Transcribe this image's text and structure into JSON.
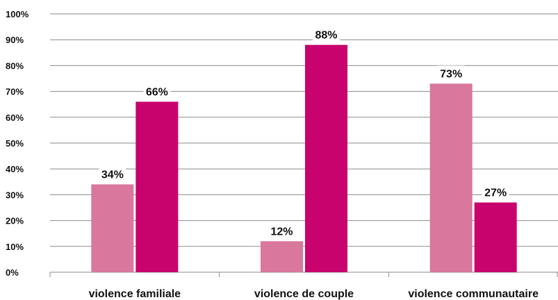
{
  "chart_data": {
    "type": "bar",
    "categories": [
      "violence familiale",
      "violence de couple",
      "violence communautaire"
    ],
    "series": [
      {
        "values": [
          34,
          12,
          73
        ],
        "color": "#d9779c"
      },
      {
        "values": [
          66,
          88,
          27
        ],
        "color": "#c8036d"
      }
    ],
    "data_labels": [
      [
        "34%",
        "12%",
        "73%"
      ],
      [
        "66%",
        "88%",
        "27%"
      ]
    ],
    "y_ticks": [
      "0%",
      "10%",
      "20%",
      "30%",
      "40%",
      "50%",
      "60%",
      "70%",
      "80%",
      "90%",
      "100%"
    ],
    "ylim": [
      0,
      100
    ],
    "grid": true,
    "legend": "none"
  }
}
